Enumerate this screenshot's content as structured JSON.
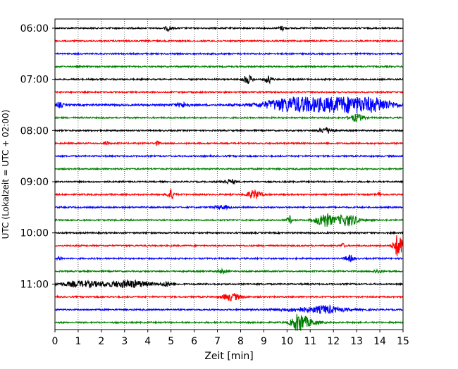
{
  "chart_data": {
    "type": "line",
    "title": "",
    "xlabel": "Zeit  [min]",
    "ylabel": "UTC (Lokalzeit = UTC + 02:00)",
    "xlim": [
      0,
      15
    ],
    "x_ticks": [
      "0",
      "1",
      "2",
      "3",
      "4",
      "5",
      "6",
      "7",
      "8",
      "9",
      "10",
      "11",
      "12",
      "13",
      "14",
      "15"
    ],
    "y_ticks": [
      "06:00",
      "07:00",
      "08:00",
      "09:00",
      "10:00",
      "11:00"
    ],
    "grid": "vertical dotted",
    "legend": "none",
    "trace_interval_minutes": 15,
    "trace_colors": [
      "#000000",
      "#ff0000",
      "#0000ff",
      "#008000"
    ],
    "series": [
      {
        "start": "06:00",
        "color": "#000000",
        "noise": 1.0,
        "events": [
          {
            "t": 4.9,
            "amp": 3,
            "dur": 0.15
          },
          {
            "t": 9.8,
            "amp": 3,
            "dur": 0.15
          }
        ]
      },
      {
        "start": "06:15",
        "color": "#ff0000",
        "noise": 1.0,
        "events": []
      },
      {
        "start": "06:30",
        "color": "#0000ff",
        "noise": 1.0,
        "events": []
      },
      {
        "start": "06:45",
        "color": "#008000",
        "noise": 1.0,
        "events": []
      },
      {
        "start": "07:00",
        "color": "#000000",
        "noise": 1.0,
        "events": [
          {
            "t": 8.3,
            "amp": 6,
            "dur": 0.2
          },
          {
            "t": 9.2,
            "amp": 5,
            "dur": 0.15
          }
        ]
      },
      {
        "start": "07:15",
        "color": "#ff0000",
        "noise": 1.0,
        "events": []
      },
      {
        "start": "07:30",
        "color": "#0000ff",
        "noise": 1.3,
        "events": [
          {
            "t": 0.2,
            "amp": 3,
            "dur": 0.15
          },
          {
            "t": 5.5,
            "amp": 3,
            "dur": 0.3
          },
          {
            "t": 10.3,
            "amp": 10,
            "dur": 1.3
          },
          {
            "t": 12.7,
            "amp": 11,
            "dur": 1.4
          },
          {
            "t": 14.0,
            "amp": 4,
            "dur": 0.6
          }
        ]
      },
      {
        "start": "07:45",
        "color": "#008000",
        "noise": 1.0,
        "events": [
          {
            "t": 13.0,
            "amp": 5,
            "dur": 0.3
          }
        ]
      },
      {
        "start": "08:00",
        "color": "#000000",
        "noise": 1.0,
        "events": [
          {
            "t": 11.7,
            "amp": 4,
            "dur": 0.3
          }
        ]
      },
      {
        "start": "08:15",
        "color": "#ff0000",
        "noise": 1.0,
        "events": [
          {
            "t": 2.2,
            "amp": 3,
            "dur": 0.1
          },
          {
            "t": 4.4,
            "amp": 3,
            "dur": 0.1
          }
        ]
      },
      {
        "start": "08:30",
        "color": "#0000ff",
        "noise": 1.0,
        "events": []
      },
      {
        "start": "08:45",
        "color": "#008000",
        "noise": 1.0,
        "events": []
      },
      {
        "start": "09:00",
        "color": "#000000",
        "noise": 1.0,
        "events": [
          {
            "t": 7.5,
            "amp": 3,
            "dur": 0.3
          }
        ]
      },
      {
        "start": "09:15",
        "color": "#ff0000",
        "noise": 1.0,
        "events": [
          {
            "t": 5.0,
            "amp": 7,
            "dur": 0.15
          },
          {
            "t": 8.6,
            "amp": 6,
            "dur": 0.3
          },
          {
            "t": 14.0,
            "amp": 3,
            "dur": 0.1
          }
        ]
      },
      {
        "start": "09:30",
        "color": "#0000ff",
        "noise": 1.0,
        "events": [
          {
            "t": 7.2,
            "amp": 2.5,
            "dur": 0.3
          }
        ]
      },
      {
        "start": "09:45",
        "color": "#008000",
        "noise": 1.0,
        "events": [
          {
            "t": 10.1,
            "amp": 6,
            "dur": 0.1
          },
          {
            "t": 11.6,
            "amp": 10,
            "dur": 0.35
          },
          {
            "t": 12.6,
            "amp": 8,
            "dur": 0.5
          }
        ]
      },
      {
        "start": "10:00",
        "color": "#000000",
        "noise": 1.0,
        "events": []
      },
      {
        "start": "10:15",
        "color": "#ff0000",
        "noise": 1.0,
        "events": [
          {
            "t": 12.4,
            "amp": 3,
            "dur": 0.1
          },
          {
            "t": 14.8,
            "amp": 17,
            "dur": 0.2
          }
        ]
      },
      {
        "start": "10:30",
        "color": "#0000ff",
        "noise": 1.0,
        "events": [
          {
            "t": 0.2,
            "amp": 3,
            "dur": 0.1
          },
          {
            "t": 12.7,
            "amp": 4,
            "dur": 0.2
          }
        ]
      },
      {
        "start": "10:45",
        "color": "#008000",
        "noise": 1.0,
        "events": [
          {
            "t": 7.2,
            "amp": 2.5,
            "dur": 0.2
          },
          {
            "t": 13.9,
            "amp": 2.5,
            "dur": 0.2
          }
        ]
      },
      {
        "start": "11:00",
        "color": "#000000",
        "noise": 1.0,
        "events": [
          {
            "t": 1.2,
            "amp": 4,
            "dur": 0.9
          },
          {
            "t": 3.2,
            "amp": 5,
            "dur": 0.9
          },
          {
            "t": 4.8,
            "amp": 3,
            "dur": 0.2
          }
        ]
      },
      {
        "start": "11:15",
        "color": "#ff0000",
        "noise": 1.0,
        "events": [
          {
            "t": 7.6,
            "amp": 5,
            "dur": 0.4
          }
        ]
      },
      {
        "start": "11:30",
        "color": "#0000ff",
        "noise": 1.0,
        "events": [
          {
            "t": 11.2,
            "amp": 3,
            "dur": 1.5
          },
          {
            "t": 11.7,
            "amp": 3,
            "dur": 0.4
          }
        ]
      },
      {
        "start": "11:45",
        "color": "#008000",
        "noise": 1.0,
        "events": [
          {
            "t": 10.5,
            "amp": 11,
            "dur": 0.3
          },
          {
            "t": 10.9,
            "amp": 4,
            "dur": 0.5
          }
        ]
      }
    ]
  }
}
